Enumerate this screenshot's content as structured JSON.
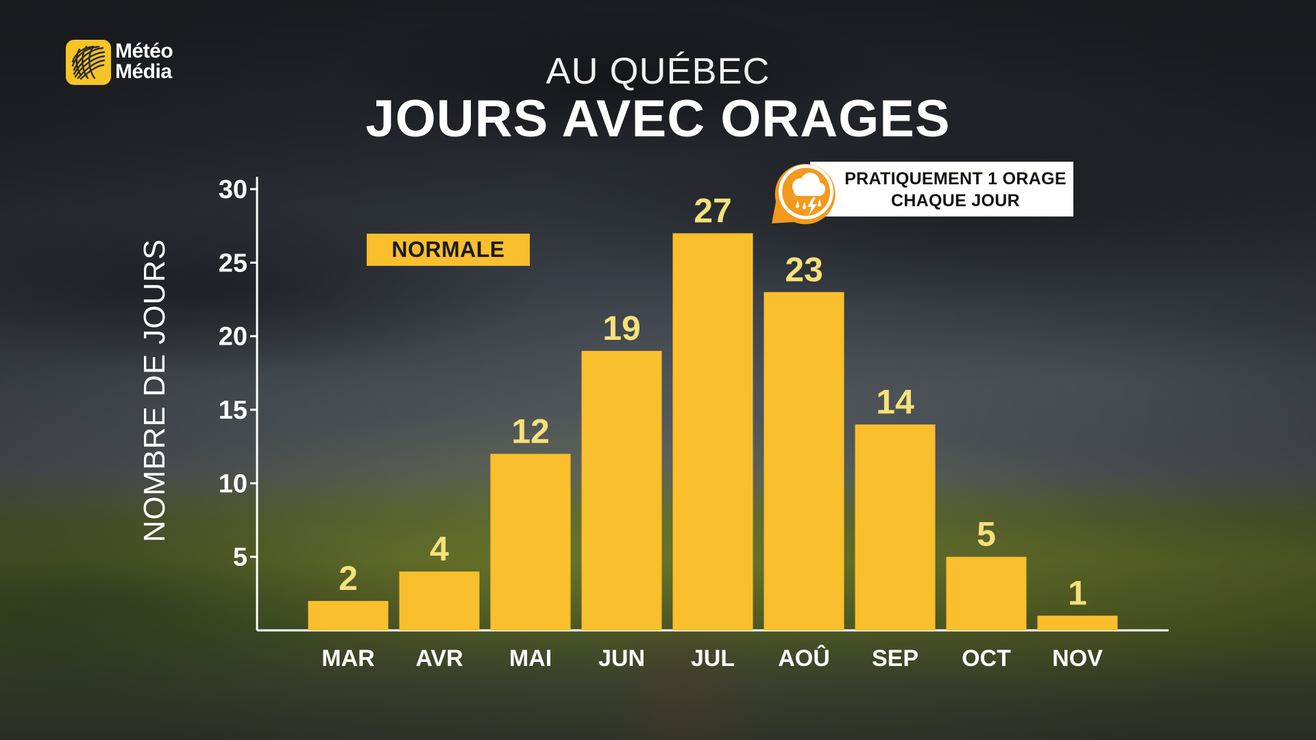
{
  "brand": {
    "line1": "Météo",
    "line2": "Média",
    "logo_icon": "globe-logo-icon",
    "logo_color": "#f7c425"
  },
  "header": {
    "subtitle": "AU QUÉBEC",
    "title": "JOURS AVEC ORAGES"
  },
  "legend": {
    "label": "NORMALE",
    "color": "#f9bf2c"
  },
  "annotation": {
    "line1": "PRATIQUEMENT 1 ORAGE",
    "line2": "CHAQUE JOUR",
    "icon": "thunderstorm-cloud-icon",
    "badge_color": "#f39a1e"
  },
  "chart_data": {
    "type": "bar",
    "title": "JOURS AVEC ORAGES",
    "subtitle": "AU QUÉBEC",
    "xlabel": "",
    "ylabel": "NOMBRE DE JOURS",
    "categories": [
      "MAR",
      "AVR",
      "MAI",
      "JUN",
      "JUL",
      "AOÛ",
      "SEP",
      "OCT",
      "NOV"
    ],
    "series": [
      {
        "name": "NORMALE",
        "values": [
          2,
          4,
          12,
          19,
          27,
          23,
          14,
          5,
          1
        ],
        "color": "#f9bf2c"
      }
    ],
    "yticks": [
      5,
      10,
      15,
      20,
      25,
      30
    ],
    "ylim": [
      0,
      30
    ],
    "data_labels": true,
    "grid": false,
    "legend_position": "top-left",
    "value_label_color": "#f5e17a"
  }
}
